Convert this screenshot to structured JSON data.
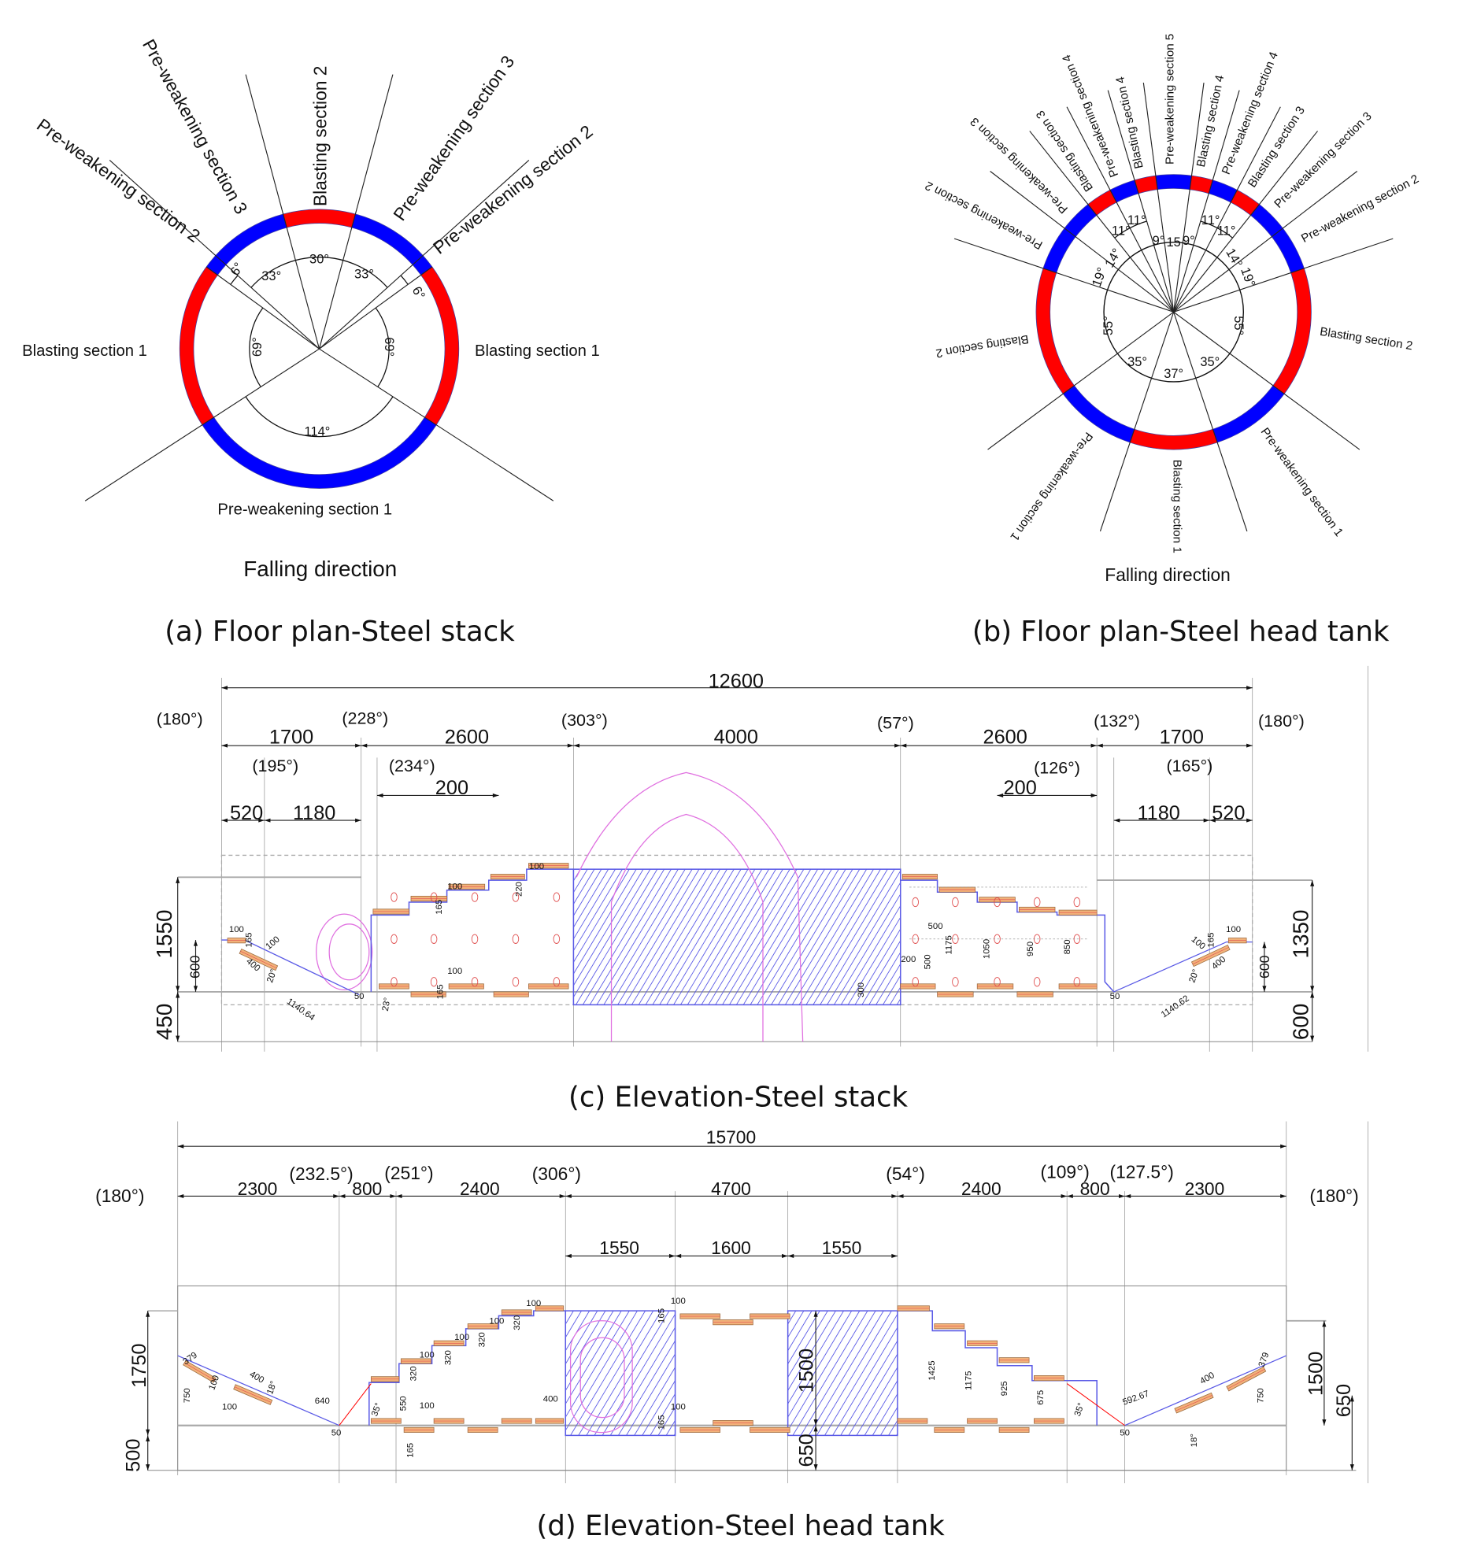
{
  "colors": {
    "blasting": "#ff0000",
    "pre_weakening": "#0000ff",
    "hatch": "#5a5ae6",
    "pink": "#e070e0",
    "bar": "#f2b27a"
  },
  "panel_a": {
    "caption": "(a) Floor plan-Steel stack",
    "falling_direction": "Falling direction",
    "section_labels": [
      "Blasting section 2",
      "Pre-weakening section 3",
      "Pre-weakening section 3",
      "Pre-weakening section 2",
      "Pre-weakening section 2",
      "Blasting section 1",
      "Blasting section 1",
      "Pre-weakening section 1"
    ],
    "angles": [
      "6°",
      "33°",
      "30°",
      "33°",
      "6°",
      "69°",
      "69°",
      "114°"
    ]
  },
  "panel_b": {
    "caption": "(b) Floor plan-Steel head tank",
    "falling_direction": "Falling direction",
    "section_labels": [
      "Pre-weakening section 5",
      "Blasting section 4",
      "Pre-weakening section 4",
      "Blasting section 3",
      "Pre-weakening section 3",
      "Pre-weakening section 2",
      "Blasting section 2",
      "Pre-weakening section 1",
      "Blasting section 1",
      "Pre-weakening section 1",
      "Blasting section 2",
      "Pre-weakening section 2",
      "Pre-weakening section 3",
      "Blasting section 3",
      "Pre-weakening section 4",
      "Blasting section 4"
    ],
    "angles": [
      "15",
      "9°",
      "9°",
      "11°",
      "11°",
      "11°",
      "11°",
      "14°",
      "14°",
      "19°",
      "19°",
      "55°",
      "55°",
      "35°",
      "35°",
      "37°"
    ]
  },
  "panel_c": {
    "caption": "(c) Elevation-Steel stack",
    "total": "12600",
    "angles": [
      "(180°)",
      "(228°)",
      "(303°)",
      "(57°)",
      "(132°)",
      "(180°)",
      "(195°)",
      "(234°)",
      "(126°)",
      "(165°)"
    ],
    "dims": [
      "1700",
      "2600",
      "4000",
      "2600",
      "1700",
      "200",
      "200",
      "520",
      "1180",
      "1180",
      "520"
    ],
    "vdims": [
      "1550",
      "600",
      "450",
      "1350",
      "600",
      "600"
    ],
    "small": [
      "100",
      "165",
      "100",
      "100",
      "165",
      "220",
      "100",
      "100",
      "165",
      "400",
      "20°",
      "1140.64",
      "50",
      "23°",
      "500",
      "500",
      "200",
      "300",
      "1175",
      "1050",
      "950",
      "850",
      "50",
      "1140.62",
      "20°",
      "400",
      "100",
      "165",
      "100"
    ]
  },
  "panel_d": {
    "caption": "(d) Elevation-Steel head tank",
    "total": "15700",
    "angles": [
      "(180°)",
      "(232.5°)",
      "(251°)",
      "(306°)",
      "(54°)",
      "(109°)",
      "(127.5°)",
      "(180°)"
    ],
    "dims": [
      "2300",
      "800",
      "2400",
      "4700",
      "2400",
      "800",
      "2300",
      "1550",
      "1600",
      "1550"
    ],
    "vdims": [
      "1750",
      "500",
      "1500",
      "650",
      "1500",
      "650"
    ],
    "small": [
      "379",
      "750",
      "100",
      "100",
      "400",
      "18°",
      "640",
      "50",
      "35°",
      "320",
      "100",
      "320",
      "100",
      "320",
      "100",
      "320",
      "100",
      "550",
      "100",
      "165",
      "400",
      "165",
      "100",
      "165",
      "100",
      "1425",
      "1175",
      "925",
      "675",
      "35°",
      "592.67",
      "50",
      "400",
      "379",
      "750",
      "18°"
    ]
  }
}
